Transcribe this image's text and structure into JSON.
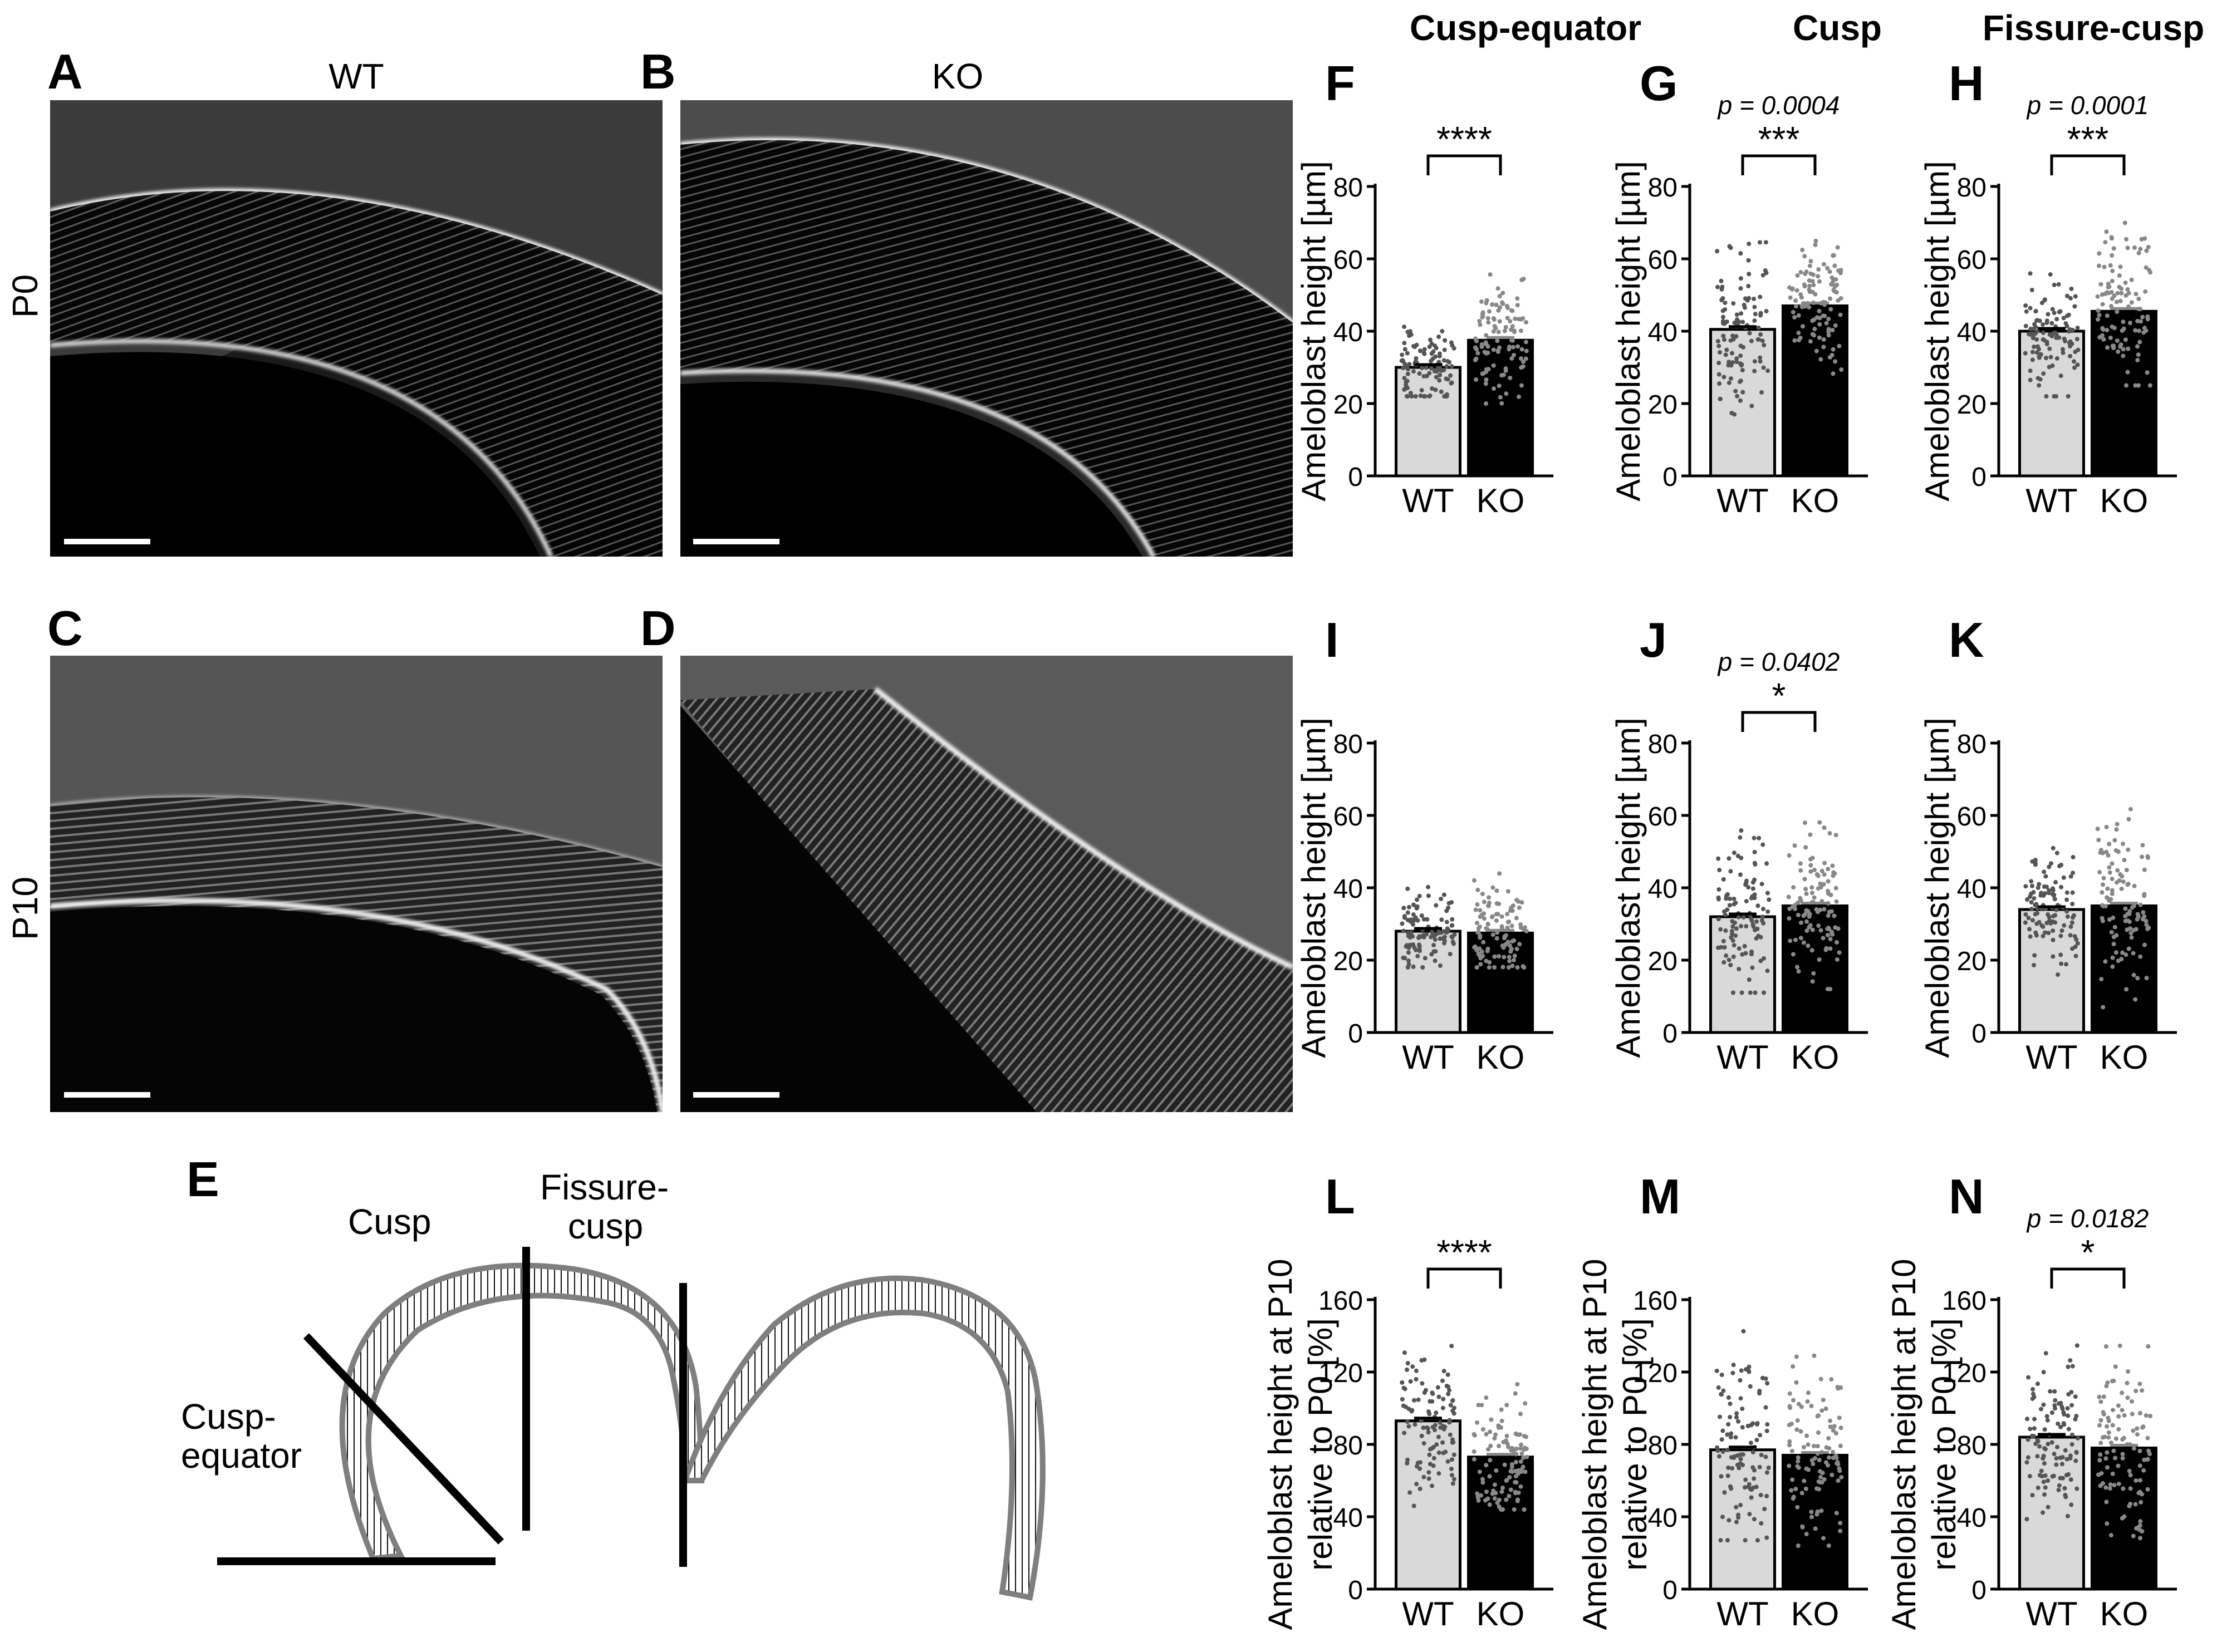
{
  "columns": {
    "wt": "WT",
    "ko": "KO",
    "cusp_equator": "Cusp-equator",
    "cusp": "Cusp",
    "fissure_cusp": "Fissure-cusp"
  },
  "rows": {
    "p0": "P0",
    "p10": "P10"
  },
  "panel_letters": {
    "a": "A",
    "b": "B",
    "c": "C",
    "d": "D",
    "e": "E"
  },
  "diagram": {
    "cusp": "Cusp",
    "fissure_cusp_line1": "Fissure-",
    "fissure_cusp_line2": "cusp",
    "cusp_equator_line1": "Cusp-",
    "cusp_equator_line2": "equator"
  },
  "colors": {
    "wt_bar": "#d9d9d9",
    "ko_bar": "#000000",
    "diagram_outline": "#7f7f7f"
  },
  "chart_data": [
    {
      "id": "F",
      "letter": "F",
      "type": "bar",
      "categories": [
        "WT",
        "KO"
      ],
      "values": [
        30,
        37.5
      ],
      "ylim": [
        0,
        80
      ],
      "yticks": [
        0,
        20,
        40,
        60,
        80
      ],
      "ylabel": [
        "Ameloblast height [µm]"
      ],
      "pvalue": "",
      "stars": "****",
      "ymin_pts": [
        [
          22,
          46
        ],
        [
          20,
          58
        ]
      ]
    },
    {
      "id": "G",
      "letter": "G",
      "type": "bar",
      "categories": [
        "WT",
        "KO"
      ],
      "values": [
        40.5,
        47
      ],
      "ylim": [
        0,
        80
      ],
      "yticks": [
        0,
        20,
        40,
        60,
        80
      ],
      "ylabel": [
        "Ameloblast height [µm]"
      ],
      "pvalue": "p = 0.0004",
      "stars": "***",
      "ymin_pts": [
        [
          17,
          70
        ],
        [
          27,
          67
        ]
      ]
    },
    {
      "id": "H",
      "letter": "H",
      "type": "bar",
      "categories": [
        "WT",
        "KO"
      ],
      "values": [
        40,
        45.5
      ],
      "ylim": [
        0,
        80
      ],
      "yticks": [
        0,
        20,
        40,
        60,
        80
      ],
      "ylabel": [
        "Ameloblast height [µm]"
      ],
      "pvalue": "p = 0.0001",
      "stars": "***",
      "ymin_pts": [
        [
          22,
          58
        ],
        [
          25,
          79
        ]
      ]
    },
    {
      "id": "I",
      "letter": "I",
      "type": "bar",
      "categories": [
        "WT",
        "KO"
      ],
      "values": [
        28,
        27.5
      ],
      "ylim": [
        0,
        80
      ],
      "yticks": [
        0,
        20,
        40,
        60,
        80
      ],
      "ylabel": [
        "Ameloblast height [µm]"
      ],
      "pvalue": "",
      "stars": "",
      "ymin_pts": [
        [
          18,
          43
        ],
        [
          18,
          49
        ]
      ]
    },
    {
      "id": "J",
      "letter": "J",
      "type": "bar",
      "categories": [
        "WT",
        "KO"
      ],
      "values": [
        32,
        35
      ],
      "ylim": [
        0,
        80
      ],
      "yticks": [
        0,
        20,
        40,
        60,
        80
      ],
      "ylabel": [
        "Ameloblast height [µm]"
      ],
      "pvalue": "p = 0.0402",
      "stars": "*",
      "ymin_pts": [
        [
          11,
          63
        ],
        [
          12,
          64
        ]
      ]
    },
    {
      "id": "K",
      "letter": "K",
      "type": "bar",
      "categories": [
        "WT",
        "KO"
      ],
      "values": [
        34,
        35
      ],
      "ylim": [
        0,
        80
      ],
      "yticks": [
        0,
        20,
        40,
        60,
        80
      ],
      "ylabel": [
        "Ameloblast height [µm]"
      ],
      "pvalue": "",
      "stars": "",
      "ymin_pts": [
        [
          16,
          55
        ],
        [
          7,
          63
        ]
      ]
    },
    {
      "id": "L",
      "letter": "L",
      "type": "bar",
      "categories": [
        "WT",
        "KO"
      ],
      "values": [
        93,
        73
      ],
      "ylim": [
        0,
        160
      ],
      "yticks": [
        0,
        40,
        80,
        120,
        160
      ],
      "ylabel": [
        "Ameloblast height at P10",
        "relative to P0 [%]"
      ],
      "pvalue": "",
      "stars": "****",
      "ymin_pts": [
        [
          46,
          141
        ],
        [
          44,
          130
        ]
      ]
    },
    {
      "id": "M",
      "letter": "M",
      "type": "bar",
      "categories": [
        "WT",
        "KO"
      ],
      "values": [
        77,
        74
      ],
      "ylim": [
        0,
        160
      ],
      "yticks": [
        0,
        40,
        80,
        120,
        160
      ],
      "ylabel": [
        "Ameloblast height at P10",
        "relative to P0 [%]"
      ],
      "pvalue": "",
      "stars": "",
      "ymin_pts": [
        [
          27,
          153
        ],
        [
          24,
          140
        ]
      ]
    },
    {
      "id": "N",
      "letter": "N",
      "type": "bar",
      "categories": [
        "WT",
        "KO"
      ],
      "values": [
        84,
        78
      ],
      "ylim": [
        0,
        160
      ],
      "yticks": [
        0,
        40,
        80,
        120,
        160
      ],
      "ylabel": [
        "Ameloblast height at P10",
        "relative to P0 [%]"
      ],
      "pvalue": "p = 0.0182",
      "stars": "*",
      "ymin_pts": [
        [
          35,
          137
        ],
        [
          16,
          140
        ]
      ]
    }
  ]
}
